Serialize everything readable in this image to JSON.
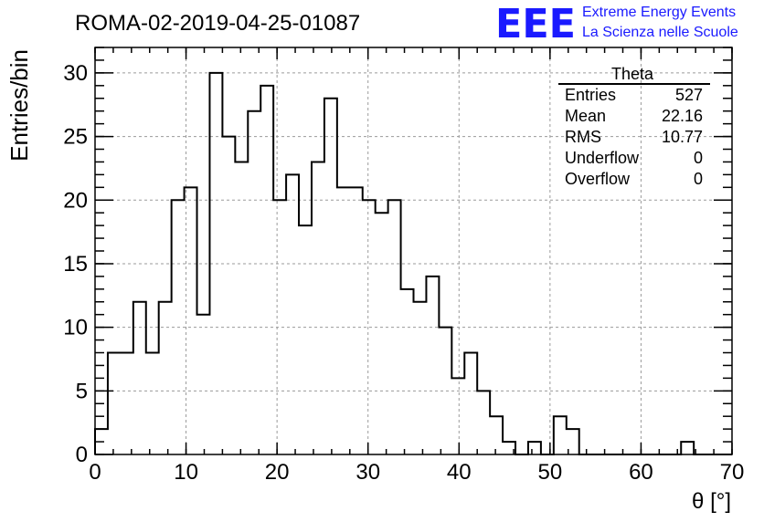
{
  "chart_data": {
    "type": "histogram",
    "title": "ROMA-02-2019-04-25-01087",
    "xlabel": "θ [°]",
    "ylabel": "Entries/bin",
    "xlim": [
      0,
      70
    ],
    "ylim": [
      0,
      32
    ],
    "bin_width": 1.4,
    "x_ticks": [
      0,
      10,
      20,
      30,
      40,
      50,
      60,
      70
    ],
    "y_ticks": [
      0,
      5,
      10,
      15,
      20,
      25,
      30
    ],
    "grid": true,
    "values": [
      2,
      8,
      8,
      12,
      8,
      12,
      20,
      21,
      11,
      30,
      25,
      23,
      27,
      29,
      20,
      22,
      18,
      23,
      28,
      21,
      21,
      20,
      19,
      20,
      13,
      12,
      14,
      10,
      6,
      8,
      5,
      3,
      1,
      0,
      1,
      0,
      3,
      2,
      0,
      0,
      0,
      0,
      0,
      0,
      0,
      0,
      1,
      0,
      0,
      0
    ],
    "stats_box": {
      "title": "Theta",
      "rows": [
        {
          "label": "Entries",
          "value": "527"
        },
        {
          "label": "Mean",
          "value": "22.16"
        },
        {
          "label": "RMS",
          "value": "10.77"
        },
        {
          "label": "Underflow",
          "value": "0"
        },
        {
          "label": "Overflow",
          "value": "0"
        }
      ]
    }
  },
  "branding": {
    "logo": "EEE",
    "line1": "Extreme Energy Events",
    "line2": "La Scienza nelle Scuole",
    "color": "#1a1aff"
  }
}
